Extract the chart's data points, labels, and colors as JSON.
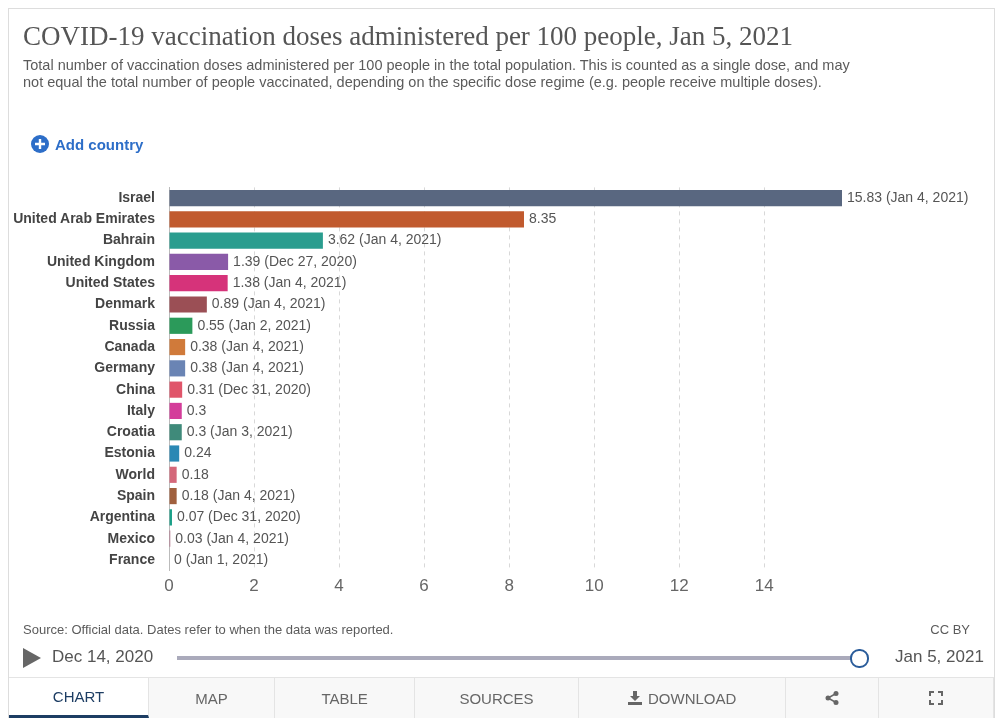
{
  "chart_data": {
    "type": "bar",
    "orientation": "horizontal",
    "title": "COVID-19 vaccination doses administered per 100 people, Jan 5, 2021",
    "subtitle": "Total number of vaccination doses administered per 100 people in the total population. This is counted as a single dose, and may not equal the total number of people vaccinated, depending on the specific dose regime (e.g. people receive multiple doses).",
    "categories": [
      "Israel",
      "United Arab Emirates",
      "Bahrain",
      "United Kingdom",
      "United States",
      "Denmark",
      "Russia",
      "Canada",
      "Germany",
      "China",
      "Italy",
      "Croatia",
      "Estonia",
      "World",
      "Spain",
      "Argentina",
      "Mexico",
      "France"
    ],
    "values": [
      15.83,
      8.35,
      3.62,
      1.39,
      1.38,
      0.89,
      0.55,
      0.38,
      0.38,
      0.31,
      0.3,
      0.3,
      0.24,
      0.18,
      0.18,
      0.07,
      0.03,
      0
    ],
    "colors": [
      "#596780",
      "#c15a2e",
      "#2a9d8f",
      "#8a5aa8",
      "#d6337a",
      "#9b4f55",
      "#2b9a5a",
      "#d07a3a",
      "#6a84b4",
      "#e0556a",
      "#d43d9a",
      "#3f8a7a",
      "#2a88b4",
      "#d4687a",
      "#a0603e",
      "#1aa088",
      "#b07088",
      "#9aa0a8"
    ],
    "value_labels": [
      "15.83 (Jan 4, 2021)",
      "8.35",
      "3.62 (Jan 4, 2021)",
      "1.39 (Dec 27, 2020)",
      "1.38 (Jan 4, 2021)",
      "0.89 (Jan 4, 2021)",
      "0.55 (Jan 2, 2021)",
      "0.38 (Jan 4, 2021)",
      "0.38 (Jan 4, 2021)",
      "0.31 (Dec 31, 2020)",
      "0.3",
      "0.3 (Jan 3, 2021)",
      "0.24",
      "0.18",
      "0.18 (Jan 4, 2021)",
      "0.07 (Dec 31, 2020)",
      "0.03 (Jan 4, 2021)",
      "0 (Jan 1, 2021)"
    ],
    "xlim": [
      0,
      15.83
    ],
    "xticks": [
      0,
      2,
      4,
      6,
      8,
      10,
      12,
      14
    ],
    "grid": "x",
    "legend": false,
    "annotations": [
      "Add country",
      "Source: Official data. Dates refer to when the data was reported.",
      "CC BY",
      "Dec 14, 2020",
      "Jan 5, 2021",
      "CHART",
      "MAP",
      "TABLE",
      "SOURCES",
      "DOWNLOAD"
    ]
  }
}
